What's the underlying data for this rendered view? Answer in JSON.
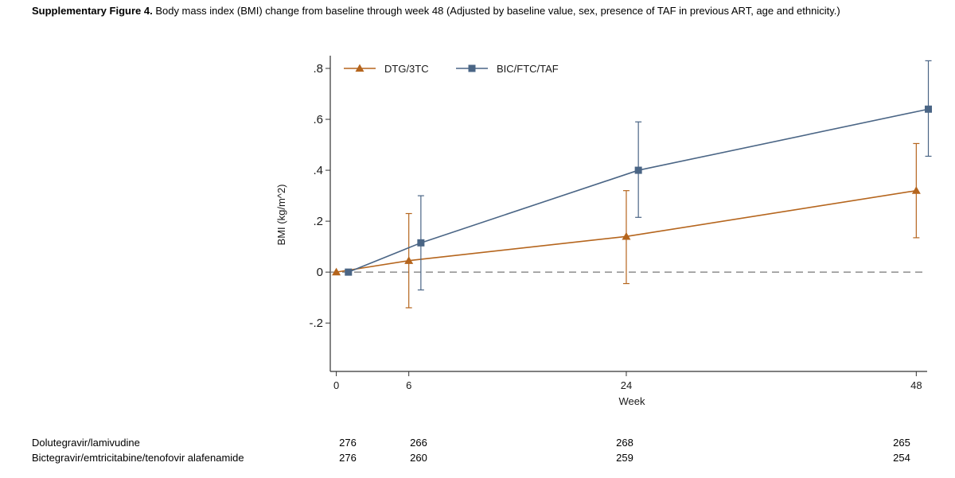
{
  "caption": {
    "label": "Supplementary Figure 4.",
    "text": " Body mass index (BMI) change from baseline through week 48 (Adjusted by baseline value, sex, presence of TAF in previous ART, age and ethnicity.)"
  },
  "chart_data": {
    "type": "line",
    "title": "",
    "xlabel": "Week",
    "ylabel": "BMI (kg/m^2)",
    "x_ticks": [
      0,
      6,
      24,
      48
    ],
    "x_tick_labels": [
      "0",
      "6",
      "24",
      "48"
    ],
    "y_ticks": [
      -0.2,
      0,
      0.2,
      0.4,
      0.6,
      0.8
    ],
    "y_tick_labels": [
      "-.2",
      "0",
      ".2",
      ".4",
      ".6",
      ".8"
    ],
    "xlim": [
      -0.5,
      48.9
    ],
    "ylim": [
      -0.39,
      0.85
    ],
    "reference_line": 0,
    "legend_position": "top-left",
    "series": [
      {
        "name": "DTG/3TC",
        "color": "#b5651d",
        "marker": "triangle",
        "x": [
          0,
          6,
          24,
          48
        ],
        "y": [
          0,
          0.045,
          0.14,
          0.32
        ],
        "ci_low": [
          0,
          -0.14,
          -0.045,
          0.135
        ],
        "ci_high": [
          0,
          0.23,
          0.32,
          0.505
        ]
      },
      {
        "name": "BIC/FTC/TAF",
        "color": "#4a6585",
        "marker": "square",
        "x": [
          1,
          7,
          25,
          49
        ],
        "y": [
          0,
          0.115,
          0.4,
          0.64
        ],
        "ci_low": [
          0,
          -0.07,
          0.215,
          0.455
        ],
        "ci_high": [
          0,
          0.3,
          0.59,
          0.83
        ]
      }
    ]
  },
  "numbers_at_risk": {
    "rows": [
      {
        "label": "Dolutegravir/lamivudine",
        "values": [
          "276",
          "266",
          "268",
          "265"
        ]
      },
      {
        "label": "Bictegravir/emtricitabine/tenofovir alafenamide",
        "values": [
          "276",
          "260",
          "259",
          "254"
        ]
      }
    ]
  }
}
